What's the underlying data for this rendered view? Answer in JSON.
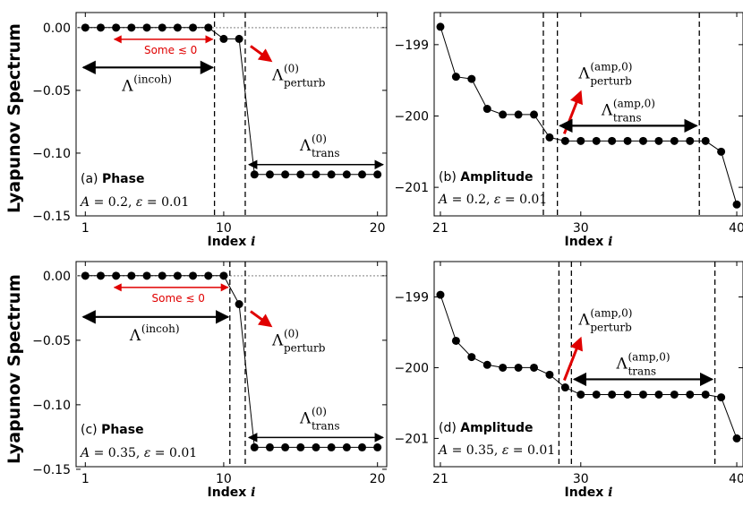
{
  "figure": {
    "ylabel": "Lyapunov Spectrum",
    "colors": {
      "red": "#e00000",
      "black": "#000000",
      "zero_line": "#aaaaaa"
    }
  },
  "chart_data": [
    {
      "type": "line",
      "panel": "(a)",
      "title": "Phase",
      "params": "A = 0.2, ε = 0.01",
      "xlabel": "Index i",
      "x": [
        1,
        2,
        3,
        4,
        5,
        6,
        7,
        8,
        9,
        10,
        11,
        12,
        13,
        14,
        15,
        16,
        17,
        18,
        19,
        20
      ],
      "values": [
        0,
        0,
        0,
        0,
        0,
        0,
        0,
        0,
        0,
        -0.009,
        -0.009,
        -0.117,
        -0.117,
        -0.117,
        -0.117,
        -0.117,
        -0.117,
        -0.117,
        -0.117,
        -0.117
      ],
      "xlim": [
        0.4,
        20.6
      ],
      "ylim": [
        -0.15,
        0.012
      ],
      "xticks": [
        "1",
        "10",
        "20"
      ],
      "xtick_values": [
        1,
        10,
        20
      ],
      "yticks": [
        "0.00",
        "−0.05",
        "−0.10",
        "−0.15"
      ],
      "ytick_values": [
        0,
        -0.05,
        -0.1,
        -0.15
      ],
      "zero_line": true,
      "vlines": [
        9.4,
        11.4
      ],
      "annotations": {
        "incoh": {
          "base": "Λ",
          "sup": "(incoh)"
        },
        "perturb": {
          "base": "Λ",
          "sup": "(0)",
          "sub": "perturb"
        },
        "trans": {
          "base": "Λ",
          "sup": "(0)",
          "sub": "trans"
        },
        "some": "Some ≲ 0"
      }
    },
    {
      "type": "line",
      "panel": "(b)",
      "title": "Amplitude",
      "params": "A = 0.2, ε = 0.01",
      "xlabel": "Index i",
      "x": [
        21,
        22,
        23,
        24,
        25,
        26,
        27,
        28,
        29,
        30,
        31,
        32,
        33,
        34,
        35,
        36,
        37,
        38,
        39,
        40
      ],
      "values": [
        -198.75,
        -199.45,
        -199.48,
        -199.9,
        -199.98,
        -199.98,
        -199.98,
        -200.3,
        -200.35,
        -200.35,
        -200.35,
        -200.35,
        -200.35,
        -200.35,
        -200.35,
        -200.35,
        -200.35,
        -200.35,
        -200.5,
        -201.24
      ],
      "xlim": [
        20.6,
        40.4
      ],
      "ylim": [
        -201.4,
        -198.55
      ],
      "xticks": [
        "21",
        "30",
        "40"
      ],
      "xtick_values": [
        21,
        30,
        40
      ],
      "yticks": [
        "−199",
        "−200",
        "−201"
      ],
      "ytick_values": [
        -199,
        -200,
        -201
      ],
      "zero_line": false,
      "vlines": [
        27.6,
        28.5,
        37.6
      ],
      "annotations": {
        "perturb": {
          "base": "Λ",
          "sup": "(amp,0)",
          "sub": "perturb"
        },
        "trans": {
          "base": "Λ",
          "sup": "(amp,0)",
          "sub": "trans"
        }
      }
    },
    {
      "type": "line",
      "panel": "(c)",
      "title": "Phase",
      "params": "A = 0.35, ε = 0.01",
      "xlabel": "Index i",
      "x": [
        1,
        2,
        3,
        4,
        5,
        6,
        7,
        8,
        9,
        10,
        11,
        12,
        13,
        14,
        15,
        16,
        17,
        18,
        19,
        20
      ],
      "values": [
        0,
        0,
        0,
        0,
        0,
        0,
        0,
        0,
        0,
        0,
        -0.022,
        -0.133,
        -0.133,
        -0.133,
        -0.133,
        -0.133,
        -0.133,
        -0.133,
        -0.133,
        -0.133
      ],
      "xlim": [
        0.4,
        20.6
      ],
      "ylim": [
        -0.148,
        0.011
      ],
      "xticks": [
        "1",
        "10",
        "20"
      ],
      "xtick_values": [
        1,
        10,
        20
      ],
      "yticks": [
        "0.00",
        "−0.05",
        "−0.10",
        "−0.15"
      ],
      "ytick_values": [
        0,
        -0.05,
        -0.1,
        -0.15
      ],
      "zero_line": true,
      "vlines": [
        10.4,
        11.4
      ],
      "annotations": {
        "incoh": {
          "base": "Λ",
          "sup": "(incoh)"
        },
        "perturb": {
          "base": "Λ",
          "sup": "(0)",
          "sub": "perturb"
        },
        "trans": {
          "base": "Λ",
          "sup": "(0)",
          "sub": "trans"
        },
        "some": "Some ≲ 0"
      }
    },
    {
      "type": "line",
      "panel": "(d)",
      "title": "Amplitude",
      "params": "A = 0.35, ε = 0.01",
      "xlabel": "Index i",
      "x": [
        21,
        22,
        23,
        24,
        25,
        26,
        27,
        28,
        29,
        30,
        31,
        32,
        33,
        34,
        35,
        36,
        37,
        38,
        39,
        40
      ],
      "values": [
        -198.97,
        -199.62,
        -199.85,
        -199.96,
        -200,
        -200,
        -200,
        -200.1,
        -200.28,
        -200.38,
        -200.38,
        -200.38,
        -200.38,
        -200.38,
        -200.38,
        -200.38,
        -200.38,
        -200.38,
        -200.42,
        -201
      ],
      "xlim": [
        20.6,
        40.4
      ],
      "ylim": [
        -201.4,
        -198.5
      ],
      "xticks": [
        "21",
        "30",
        "40"
      ],
      "xtick_values": [
        21,
        30,
        40
      ],
      "yticks": [
        "−199",
        "−200",
        "−201"
      ],
      "ytick_values": [
        -199,
        -200,
        -201
      ],
      "zero_line": false,
      "vlines": [
        28.6,
        29.4,
        38.6
      ],
      "annotations": {
        "perturb": {
          "base": "Λ",
          "sup": "(amp,0)",
          "sub": "perturb"
        },
        "trans": {
          "base": "Λ",
          "sup": "(amp,0)",
          "sub": "trans"
        }
      }
    }
  ]
}
